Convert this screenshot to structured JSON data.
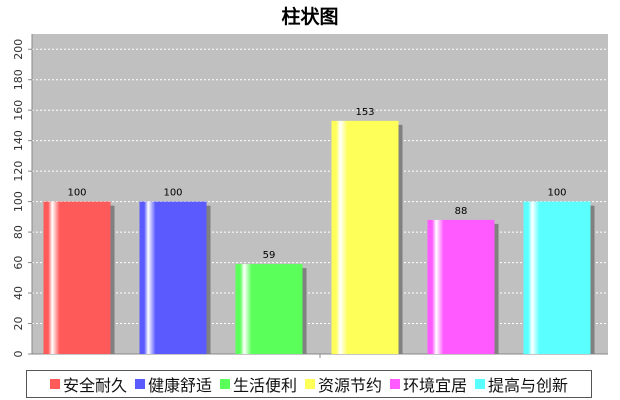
{
  "chart_data": {
    "type": "bar",
    "title": "柱状图",
    "categories": [
      "安全耐久",
      "健康舒适",
      "生活便利",
      "资源节约",
      "环境宜居",
      "提高与创新"
    ],
    "values": [
      100,
      100,
      59,
      153,
      88,
      100
    ],
    "colors": [
      "#ff5a5a",
      "#5a5aff",
      "#5aff5a",
      "#ffff5a",
      "#ff5aff",
      "#5affff"
    ],
    "ylim": [
      0,
      210
    ],
    "yticks": [
      0,
      20,
      40,
      60,
      80,
      100,
      120,
      140,
      160,
      180,
      200
    ],
    "xlabel": "",
    "ylabel": "",
    "grid": true,
    "legend_position": "bottom",
    "plot_background": "#c0c0c0"
  }
}
